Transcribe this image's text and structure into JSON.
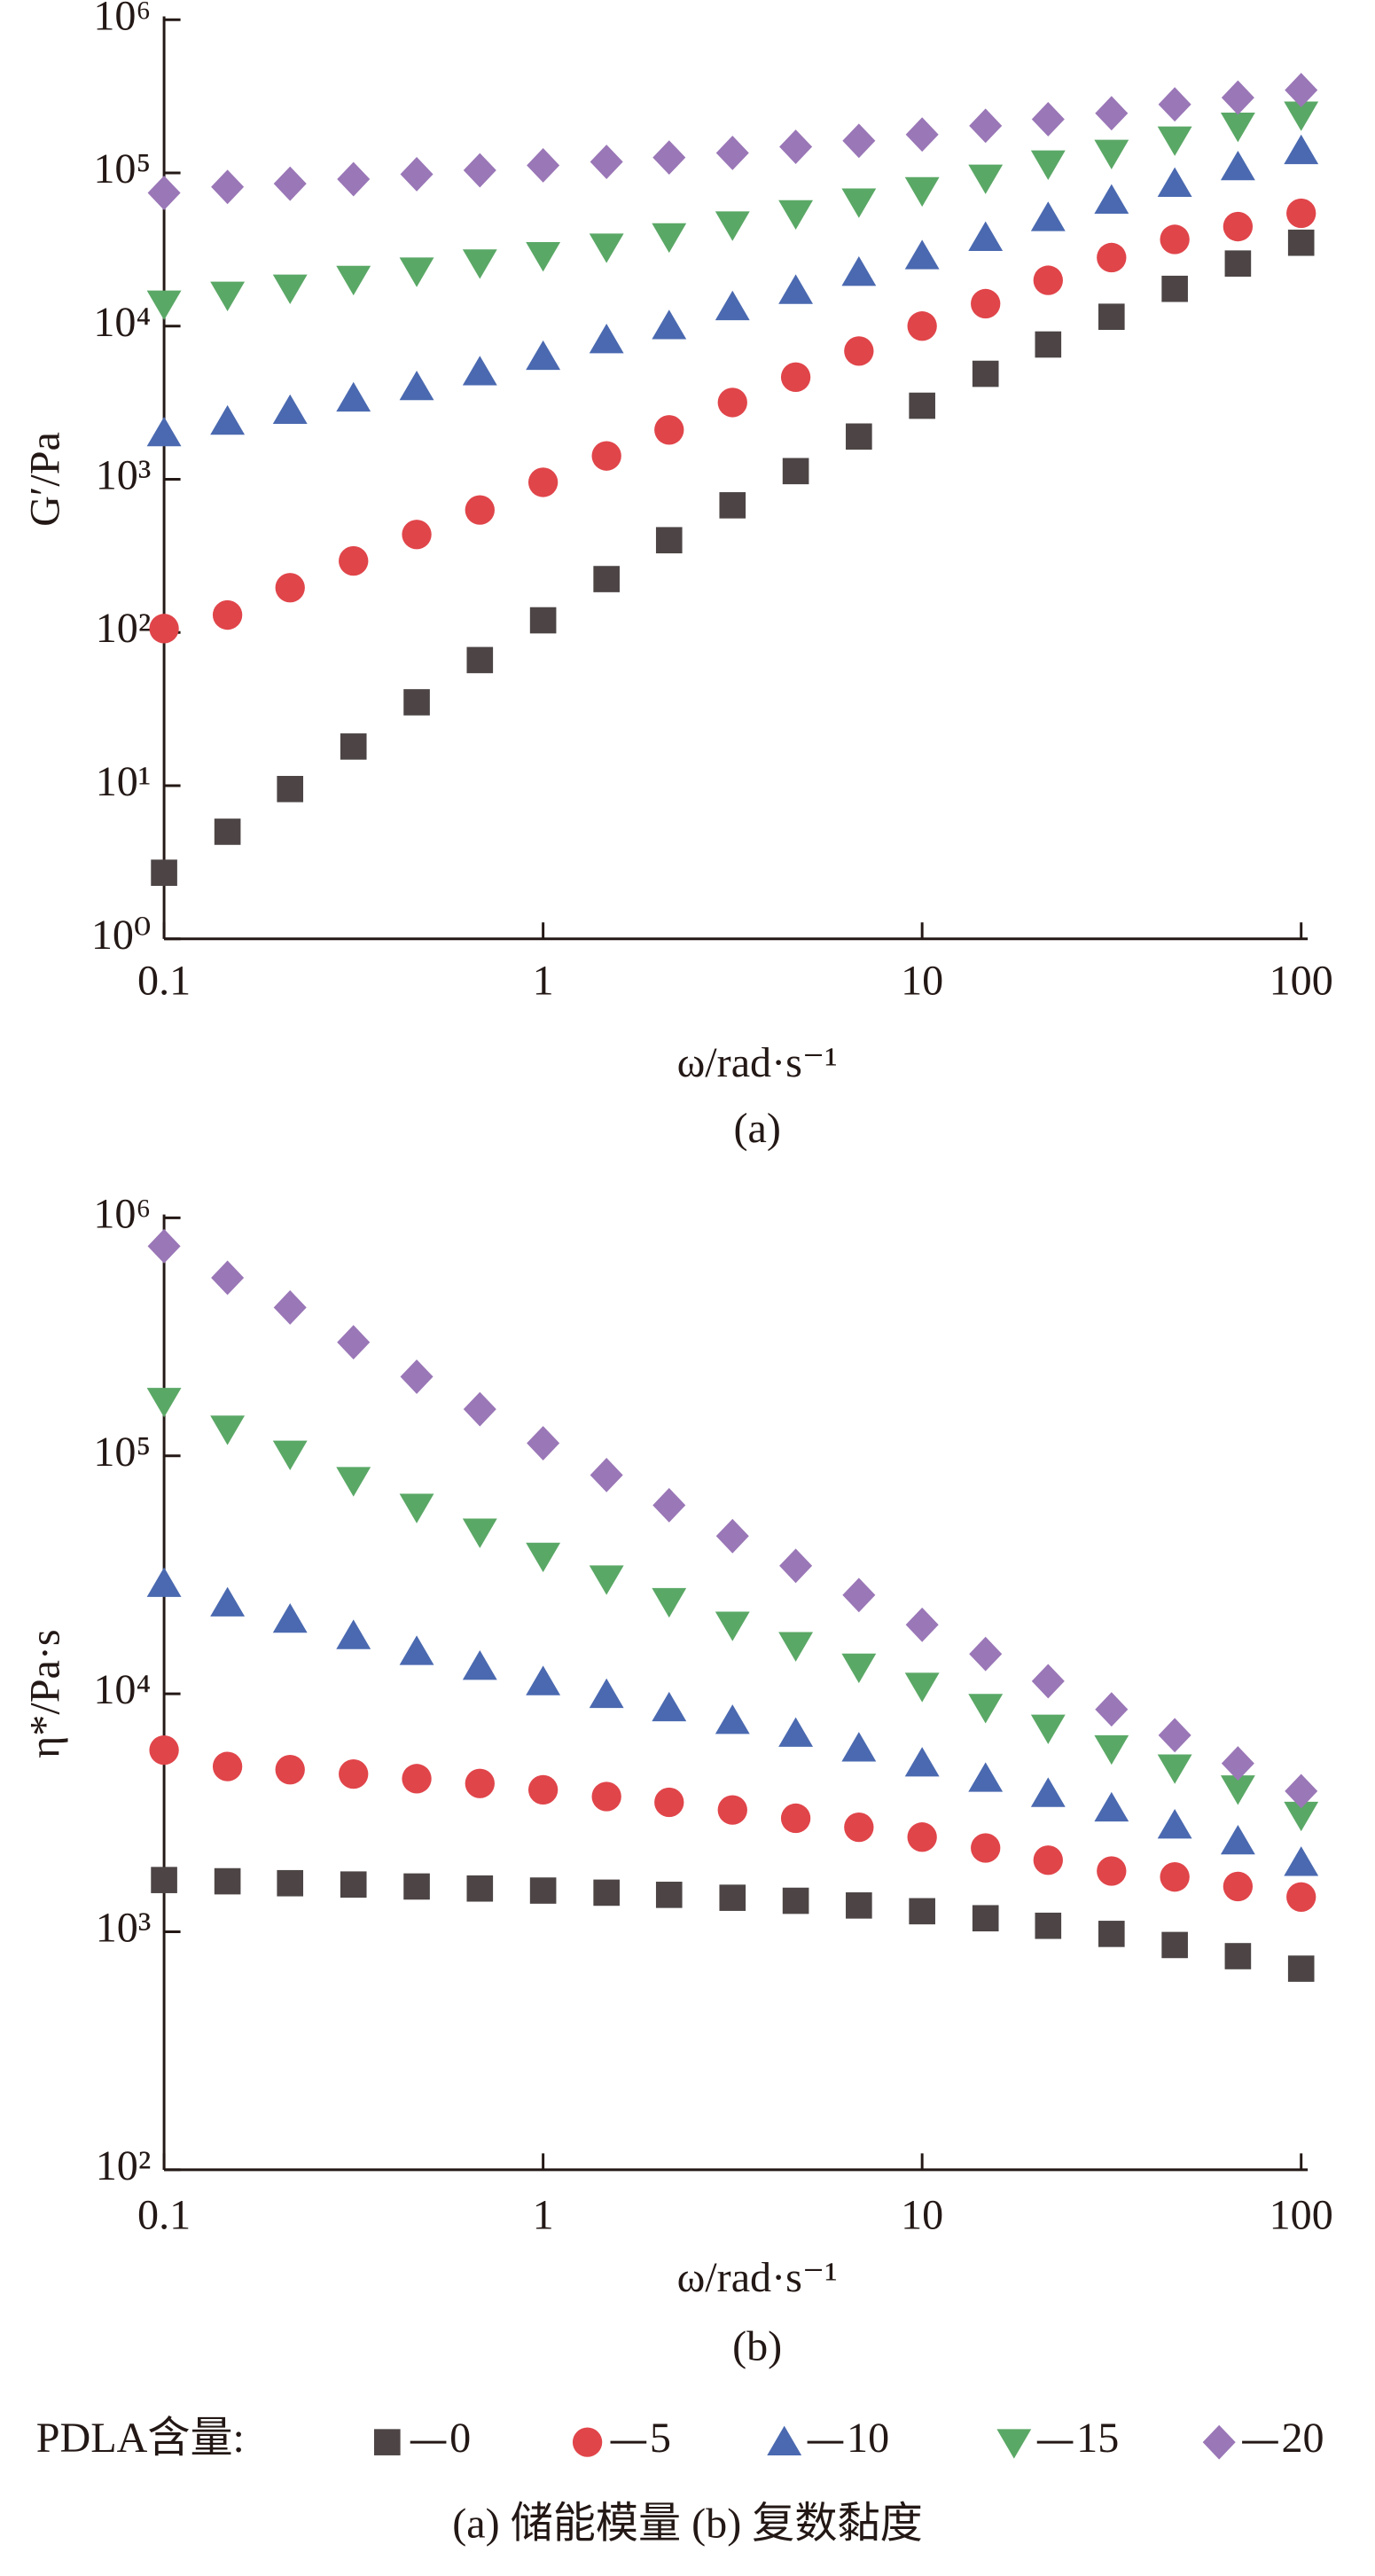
{
  "legend": {
    "title": "PDLA含量:"
  },
  "caption": "(a) 储能模量   (b) 复数黏度",
  "chart_data": [
    {
      "type": "scatter",
      "caption": "(a)",
      "x_label": "ω/rad·s⁻¹",
      "y_label": "G′/Pa",
      "log_x": true,
      "log_y": true,
      "x": [
        0.1,
        0.147,
        0.215,
        0.316,
        0.464,
        0.681,
        1,
        1.47,
        2.15,
        3.16,
        4.64,
        6.81,
        10,
        14.7,
        21.5,
        31.6,
        46.4,
        68.1,
        100
      ],
      "xlim": [
        0.1,
        100
      ],
      "xticks": [
        0.1,
        1,
        10,
        100
      ],
      "ylim": [
        1,
        1000000
      ],
      "yticks": [
        {
          "value": 1,
          "label": "10⁰"
        },
        {
          "value": 10,
          "label": "10¹"
        },
        {
          "value": 100,
          "label": "10²"
        },
        {
          "value": 1000,
          "label": "10³"
        },
        {
          "value": 10000,
          "label": "10⁴"
        },
        {
          "value": 100000,
          "label": "10⁵"
        },
        {
          "value": 1000000,
          "label": "10⁶"
        }
      ],
      "series": [
        {
          "name": "0",
          "marker": "square",
          "color": "#4d4545",
          "values": [
            2.7,
            5,
            9.5,
            18,
            35,
            66,
            120,
            223,
            400,
            676,
            1130,
            1900,
            3020,
            4880,
            7580,
            11500,
            17500,
            25600,
            35000
          ]
        },
        {
          "name": "5",
          "marker": "circle",
          "color": "#e0454a",
          "values": [
            106,
            130,
            196,
            293,
            436,
            630,
            955,
            1420,
            2100,
            3170,
            4640,
            6870,
            10000,
            14000,
            19900,
            28000,
            36800,
            44600,
            54500
          ]
        },
        {
          "name": "10",
          "marker": "triangle",
          "color": "#4a69b0",
          "values": [
            2000,
            2380,
            2800,
            3370,
            4000,
            5000,
            6300,
            8100,
            10000,
            13300,
            17000,
            22300,
            28600,
            37700,
            50800,
            66000,
            85000,
            109000,
            139000
          ]
        },
        {
          "name": "15",
          "marker": "triangle-down",
          "color": "#5aa866",
          "values": [
            14000,
            16000,
            17800,
            20300,
            23000,
            26000,
            29000,
            33000,
            38500,
            46000,
            54500,
            65000,
            77000,
            93000,
            115000,
            135000,
            165000,
            203000,
            240000
          ]
        },
        {
          "name": "20",
          "marker": "diamond",
          "color": "#9a77b7",
          "values": [
            74000,
            81000,
            85000,
            91000,
            98000,
            104000,
            112000,
            118000,
            126000,
            135000,
            148000,
            162000,
            178000,
            203000,
            224000,
            245000,
            280000,
            310000,
            347000
          ]
        }
      ]
    },
    {
      "type": "scatter",
      "caption": "(b)",
      "x_label": "ω/rad·s⁻¹",
      "y_label": "η*/Pa·s",
      "log_x": true,
      "log_y": true,
      "x": [
        0.1,
        0.147,
        0.215,
        0.316,
        0.464,
        0.681,
        1,
        1.47,
        2.15,
        3.16,
        4.64,
        6.81,
        10,
        14.7,
        21.5,
        31.6,
        46.4,
        68.1,
        100
      ],
      "xlim": [
        0.1,
        100
      ],
      "xticks": [
        0.1,
        1,
        10,
        100
      ],
      "ylim": [
        100,
        1000000
      ],
      "yticks": [
        {
          "value": 100,
          "label": "10²"
        },
        {
          "value": 1000,
          "label": "10³"
        },
        {
          "value": 10000,
          "label": "10⁴"
        },
        {
          "value": 100000,
          "label": "10⁵"
        },
        {
          "value": 1000000,
          "label": "10⁶"
        }
      ],
      "series": [
        {
          "marker": "square",
          "color": "#4d4545",
          "values": [
            1650,
            1630,
            1600,
            1580,
            1550,
            1520,
            1490,
            1460,
            1430,
            1390,
            1350,
            1290,
            1220,
            1140,
            1060,
            980,
            880,
            790,
            700
          ]
        },
        {
          "marker": "circle",
          "color": "#e0454a",
          "values": [
            5800,
            4950,
            4800,
            4600,
            4400,
            4200,
            3950,
            3700,
            3500,
            3250,
            3000,
            2750,
            2500,
            2250,
            2000,
            1800,
            1700,
            1550,
            1400
          ]
        },
        {
          "marker": "triangle",
          "color": "#4a69b0",
          "values": [
            29000,
            24000,
            20500,
            17500,
            15000,
            13000,
            11200,
            9900,
            8700,
            7700,
            6800,
            5900,
            5100,
            4400,
            3800,
            3300,
            2800,
            2400,
            1950
          ]
        },
        {
          "marker": "triangle-down",
          "color": "#5aa866",
          "values": [
            170000,
            130000,
            102000,
            79000,
            61000,
            48000,
            38000,
            30500,
            24500,
            19500,
            16000,
            13000,
            10800,
            8800,
            7200,
            5900,
            4900,
            4000,
            3100
          ]
        },
        {
          "marker": "diamond",
          "color": "#9a77b7",
          "values": [
            760000,
            560000,
            420000,
            300000,
            215000,
            157000,
            113000,
            83000,
            62000,
            46000,
            34500,
            26000,
            19500,
            14700,
            11300,
            8600,
            6700,
            5100,
            3900
          ]
        }
      ]
    }
  ]
}
